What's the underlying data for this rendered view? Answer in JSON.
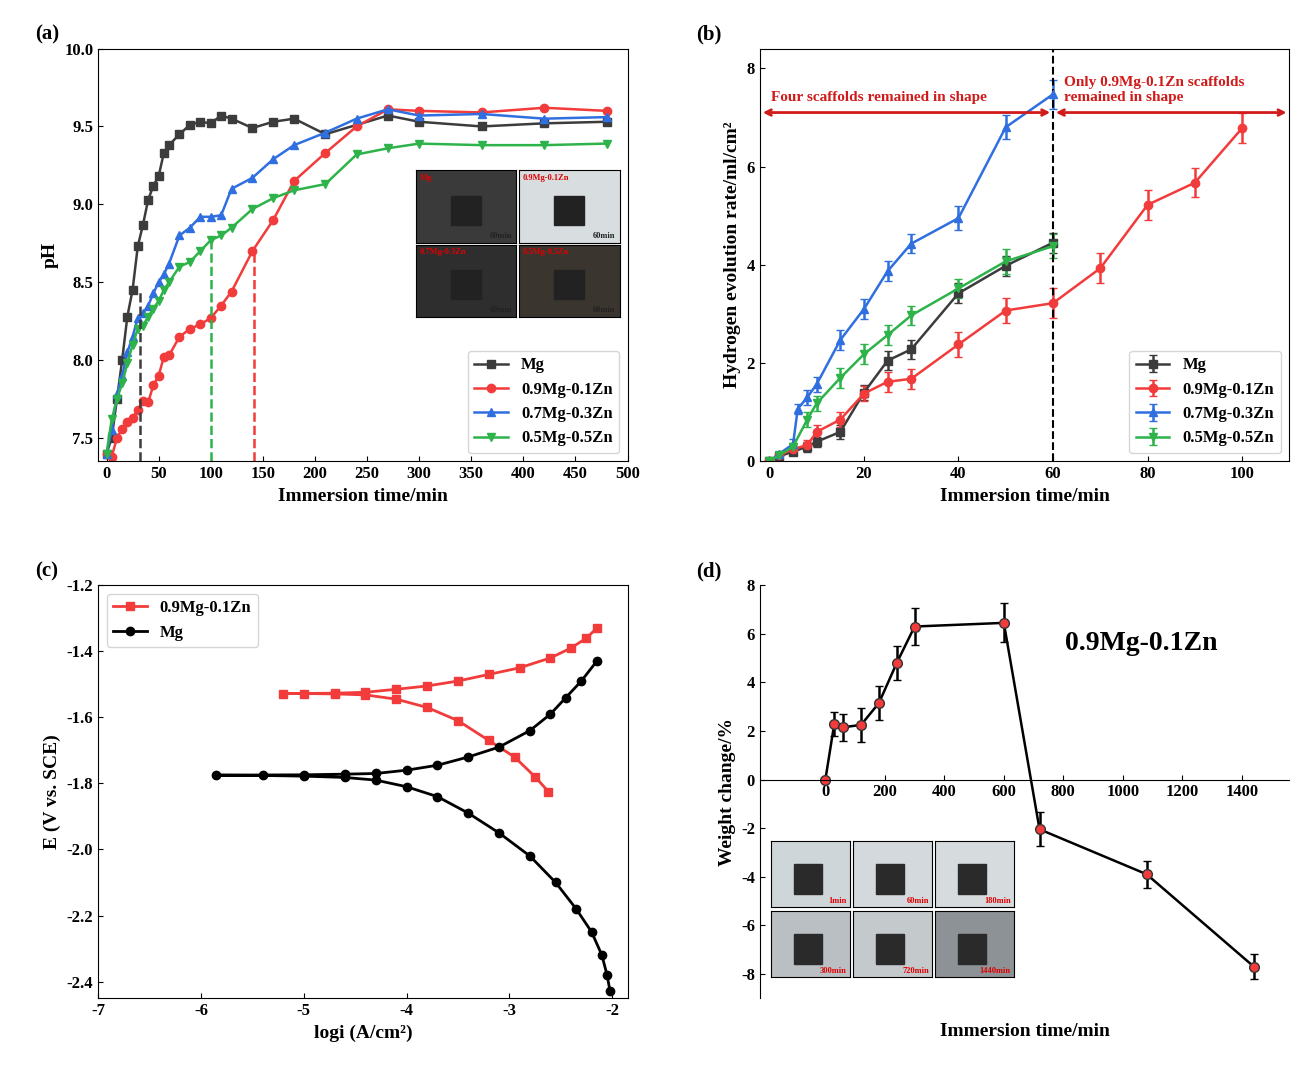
{
  "chart_data": [
    {
      "panel": "(a)",
      "type": "line",
      "x_label": "Immersion time/min",
      "y_label": "pH",
      "xlim": [
        -8,
        500
      ],
      "xticks": [
        0,
        50,
        100,
        150,
        200,
        250,
        300,
        350,
        400,
        450,
        500
      ],
      "ylim": [
        7.35,
        10.0
      ],
      "yticks": [
        7.5,
        8.0,
        8.5,
        9.0,
        9.5,
        10.0
      ],
      "legend": "lower right",
      "series": [
        {
          "name": "Mg",
          "color": "#3c3c3c",
          "marker": "square",
          "x": [
            0,
            5,
            10,
            15,
            20,
            25,
            30,
            35,
            40,
            45,
            50,
            55,
            60,
            70,
            80,
            90,
            100,
            110,
            120,
            140,
            160,
            180,
            210,
            270,
            300,
            360,
            420,
            480
          ],
          "values": [
            7.4,
            7.5,
            7.75,
            8.0,
            8.28,
            8.45,
            8.73,
            8.87,
            9.03,
            9.12,
            9.18,
            9.33,
            9.38,
            9.45,
            9.51,
            9.53,
            9.52,
            9.57,
            9.55,
            9.49,
            9.53,
            9.55,
            9.45,
            9.57,
            9.53,
            9.5,
            9.52,
            9.53
          ]
        },
        {
          "name": "0.9Mg-0.1Zn",
          "color": "#f23b3b",
          "marker": "circle",
          "x": [
            0,
            5,
            10,
            15,
            20,
            25,
            30,
            35,
            40,
            45,
            50,
            55,
            60,
            70,
            80,
            90,
            100,
            110,
            120,
            140,
            160,
            180,
            210,
            240,
            270,
            300,
            360,
            420,
            480
          ],
          "values": [
            7.4,
            7.38,
            7.5,
            7.56,
            7.6,
            7.63,
            7.68,
            7.74,
            7.73,
            7.84,
            7.9,
            8.02,
            8.03,
            8.15,
            8.2,
            8.23,
            8.27,
            8.35,
            8.44,
            8.7,
            8.9,
            9.15,
            9.33,
            9.5,
            9.61,
            9.6,
            9.59,
            9.62,
            9.6
          ]
        },
        {
          "name": "0.7Mg-0.3Zn",
          "color": "#2f6fe0",
          "marker": "triangle_up",
          "x": [
            0,
            5,
            10,
            15,
            20,
            25,
            30,
            35,
            40,
            45,
            50,
            55,
            60,
            70,
            80,
            90,
            100,
            110,
            120,
            140,
            160,
            180,
            210,
            240,
            270,
            300,
            360,
            420,
            480
          ],
          "values": [
            7.4,
            7.55,
            7.78,
            7.9,
            8.05,
            8.15,
            8.27,
            8.3,
            8.35,
            8.43,
            8.5,
            8.55,
            8.62,
            8.8,
            8.85,
            8.92,
            8.92,
            8.93,
            9.1,
            9.17,
            9.29,
            9.38,
            9.46,
            9.55,
            9.61,
            9.57,
            9.58,
            9.55,
            9.56
          ]
        },
        {
          "name": "0.5Mg-0.5Zn",
          "color": "#2db34a",
          "marker": "triangle_down",
          "x": [
            0,
            5,
            10,
            15,
            20,
            25,
            30,
            35,
            40,
            45,
            50,
            55,
            60,
            70,
            80,
            90,
            100,
            110,
            120,
            140,
            160,
            180,
            210,
            240,
            270,
            300,
            360,
            420,
            480
          ],
          "values": [
            7.4,
            7.62,
            7.75,
            7.85,
            7.98,
            8.1,
            8.2,
            8.22,
            8.28,
            8.33,
            8.38,
            8.45,
            8.5,
            8.6,
            8.63,
            8.7,
            8.77,
            8.8,
            8.85,
            8.97,
            9.04,
            9.09,
            9.13,
            9.32,
            9.36,
            9.39,
            9.38,
            9.38,
            9.39
          ]
        }
      ],
      "reference_lines": [
        {
          "x": 32,
          "y": 8.45,
          "color": "#3c3c3c",
          "line_style": "dashed"
        },
        {
          "x": 100,
          "y": 8.77,
          "color": "#2db34a",
          "line_style": "dashed"
        },
        {
          "x": 142,
          "y": 8.7,
          "color": "#f23b3b",
          "line_style": "dashed"
        }
      ],
      "inset_photos": [
        {
          "label": "Mg",
          "time": "60min",
          "color": "#3a3a3a"
        },
        {
          "label": "0.9Mg-0.1Zn",
          "time": "60min",
          "color": "#d8dde0"
        },
        {
          "label": "0.7Mg-0.3Zn",
          "time": "60min",
          "color": "#2e2e2e"
        },
        {
          "label": "0.5Mg-0.5Zn",
          "time": "60min",
          "color": "#3b3530"
        }
      ]
    },
    {
      "panel": "(b)",
      "type": "line",
      "x_label": "Immersion time/min",
      "y_label": "Hydrogen evolution rate/ml/cm²",
      "xlim": [
        -2,
        110
      ],
      "xticks": [
        0,
        20,
        40,
        60,
        80,
        100
      ],
      "ylim": [
        0,
        8.4
      ],
      "yticks": [
        0,
        2,
        4,
        6,
        8
      ],
      "legend": "lower right",
      "series": [
        {
          "name": "Mg",
          "color": "#3c3c3c",
          "marker": "square",
          "x": [
            0,
            2,
            5,
            8,
            10,
            15,
            20,
            25,
            30,
            40,
            50,
            60
          ],
          "values": [
            0,
            0.1,
            0.2,
            0.3,
            0.4,
            0.6,
            1.4,
            2.05,
            2.28,
            3.42,
            3.98,
            4.45
          ],
          "errors": [
            0,
            0.05,
            0.05,
            0.1,
            0.1,
            0.15,
            0.15,
            0.2,
            0.2,
            0.2,
            0.2,
            0.2
          ]
        },
        {
          "name": "0.9Mg-0.1Zn",
          "color": "#f23b3b",
          "marker": "circle",
          "x": [
            0,
            2,
            5,
            8,
            10,
            15,
            20,
            25,
            30,
            40,
            50,
            60,
            70,
            80,
            90,
            100
          ],
          "values": [
            0,
            0.12,
            0.25,
            0.33,
            0.6,
            0.85,
            1.38,
            1.62,
            1.68,
            2.38,
            3.07,
            3.22,
            3.93,
            5.22,
            5.67,
            6.78
          ],
          "errors": [
            0,
            0.05,
            0.08,
            0.1,
            0.15,
            0.15,
            0.15,
            0.2,
            0.2,
            0.25,
            0.25,
            0.3,
            0.3,
            0.3,
            0.3,
            0.3
          ]
        },
        {
          "name": "0.7Mg-0.3Zn",
          "color": "#2f6fe0",
          "marker": "triangle_up",
          "x": [
            0,
            2,
            5,
            6,
            8,
            10,
            15,
            20,
            25,
            30,
            40,
            50,
            60
          ],
          "values": [
            0,
            0.15,
            0.35,
            1.07,
            1.3,
            1.57,
            2.47,
            3.1,
            3.87,
            4.43,
            4.95,
            6.8,
            7.47
          ],
          "errors": [
            0,
            0.05,
            0.1,
            0.1,
            0.15,
            0.15,
            0.2,
            0.2,
            0.2,
            0.2,
            0.25,
            0.25,
            0.3
          ]
        },
        {
          "name": "0.5Mg-0.5Zn",
          "color": "#2db34a",
          "marker": "triangle_down",
          "x": [
            0,
            2,
            5,
            8,
            10,
            15,
            20,
            25,
            30,
            40,
            50,
            60
          ],
          "values": [
            0,
            0.12,
            0.3,
            0.85,
            1.18,
            1.7,
            2.18,
            2.57,
            2.97,
            3.52,
            4.07,
            4.38
          ],
          "errors": [
            0,
            0.05,
            0.08,
            0.15,
            0.15,
            0.2,
            0.2,
            0.2,
            0.2,
            0.2,
            0.25,
            0.25
          ]
        }
      ],
      "reference_lines": [
        {
          "x": 60,
          "color": "#000000",
          "line_style": "dashed"
        }
      ],
      "annotations": [
        {
          "text": "Four scaffolds remained in shape",
          "color": "#d11a1a"
        },
        {
          "text": "Only 0.9Mg-0.1Zn scaffolds\nremained in shape",
          "color": "#d11a1a"
        }
      ]
    },
    {
      "panel": "(c)",
      "type": "line",
      "x_label": "logi (A/cm²)",
      "y_label": "E (V vs. SCE)",
      "xlim": [
        -7,
        -1.85
      ],
      "xticks": [
        -7,
        -6,
        -5,
        -4,
        -3,
        -2
      ],
      "ylim": [
        -2.45,
        -1.2
      ],
      "yticks": [
        -1.2,
        -1.4,
        -1.6,
        -1.8,
        -2.0,
        -2.2,
        -2.4
      ],
      "legend": "upper left",
      "series": [
        {
          "name": "0.9Mg-0.1Zn",
          "color": "#f23b3b",
          "marker": "square",
          "x": [
            -2.62,
            -2.75,
            -2.95,
            -3.2,
            -3.5,
            -3.8,
            -4.1,
            -4.4,
            -4.7,
            -5.0,
            -5.2,
            -4.7,
            -4.4,
            -4.1,
            -3.8,
            -3.5,
            -3.2,
            -2.9,
            -2.6,
            -2.4,
            -2.25,
            -2.15
          ],
          "values": [
            -1.825,
            -1.78,
            -1.72,
            -1.67,
            -1.61,
            -1.57,
            -1.545,
            -1.532,
            -1.529,
            -1.528,
            -1.528,
            -1.527,
            -1.524,
            -1.515,
            -1.505,
            -1.49,
            -1.47,
            -1.45,
            -1.42,
            -1.39,
            -1.36,
            -1.33
          ]
        },
        {
          "name": "Mg",
          "color": "#000000",
          "marker": "circle",
          "x": [
            -2.02,
            -2.05,
            -2.1,
            -2.2,
            -2.35,
            -2.55,
            -2.8,
            -3.1,
            -3.4,
            -3.7,
            -4.0,
            -4.3,
            -4.6,
            -5.0,
            -5.4,
            -5.85,
            -5.0,
            -4.6,
            -4.3,
            -4.0,
            -3.7,
            -3.4,
            -3.1,
            -2.8,
            -2.6,
            -2.45,
            -2.3,
            -2.15
          ],
          "values": [
            -2.43,
            -2.38,
            -2.32,
            -2.25,
            -2.18,
            -2.1,
            -2.02,
            -1.95,
            -1.89,
            -1.84,
            -1.81,
            -1.79,
            -1.782,
            -1.778,
            -1.776,
            -1.775,
            -1.774,
            -1.772,
            -1.77,
            -1.76,
            -1.745,
            -1.72,
            -1.69,
            -1.64,
            -1.59,
            -1.54,
            -1.49,
            -1.43
          ]
        }
      ]
    },
    {
      "panel": "(d)",
      "type": "line",
      "x_label": "Immersion time/min",
      "y_label": "Weight change/%",
      "xlim": [
        -220,
        1560
      ],
      "xticks": [
        0,
        200,
        400,
        600,
        800,
        1000,
        1200,
        1400
      ],
      "ylim": [
        -9,
        8
      ],
      "yticks": [
        -8,
        -6,
        -4,
        -2,
        0,
        2,
        4,
        6,
        8
      ],
      "annotations": [
        {
          "text": "0.9Mg-0.1Zn",
          "color": "#000000"
        }
      ],
      "series": [
        {
          "name": "0.9Mg-0.1Zn",
          "color": "#f23b3b",
          "marker": "circle",
          "x": [
            0,
            30,
            60,
            120,
            180,
            240,
            300,
            600,
            720,
            1080,
            1440
          ],
          "values": [
            0,
            2.3,
            2.15,
            2.25,
            3.15,
            4.8,
            6.3,
            6.45,
            -2.05,
            -3.9,
            -7.7
          ],
          "errors": [
            0,
            0.5,
            0.55,
            0.7,
            0.7,
            0.7,
            0.75,
            0.8,
            0.7,
            0.55,
            0.5
          ]
        }
      ],
      "inset_photos": [
        {
          "time": "1min",
          "color": "#cfd6da"
        },
        {
          "time": "60min",
          "color": "#d3d9dc"
        },
        {
          "time": "180min",
          "color": "#d6dbde"
        },
        {
          "time": "300min",
          "color": "#b9bfc3"
        },
        {
          "time": "720min",
          "color": "#c4c9cc"
        },
        {
          "time": "1440min",
          "color": "#8d9296"
        }
      ]
    }
  ]
}
